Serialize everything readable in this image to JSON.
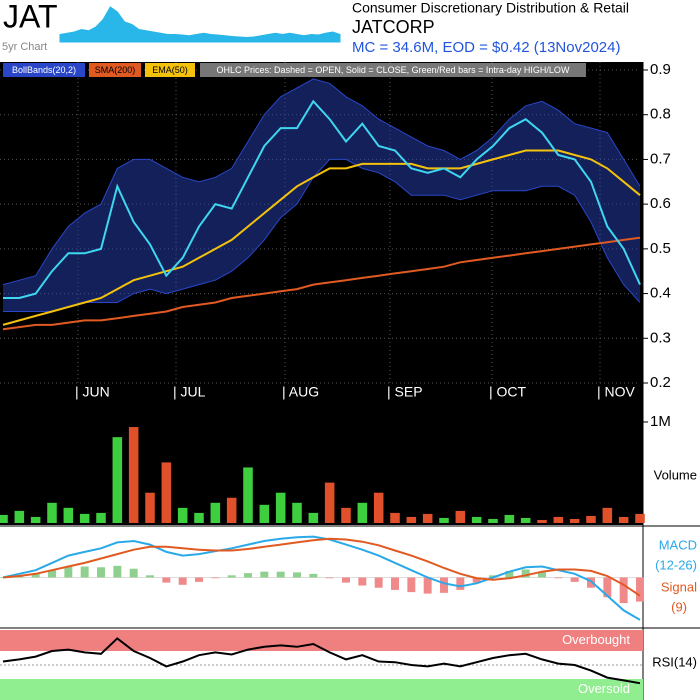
{
  "header": {
    "ticker": "JAT",
    "sector": "Consumer Discretionary Distribution & Retail",
    "company": "JATCORP",
    "summary": "MC = 34.6M, EOD = $0.42 (13Nov2024)"
  },
  "chart_data": [
    {
      "type": "area",
      "label": "5yr Chart",
      "color": "#29b6e8",
      "ylim": [
        0,
        1.6
      ],
      "values": [
        0.3,
        0.35,
        0.4,
        0.5,
        0.45,
        0.6,
        0.9,
        1.4,
        1.2,
        0.8,
        0.7,
        0.5,
        0.45,
        0.4,
        0.35,
        0.3,
        0.3,
        0.28,
        0.25,
        0.3,
        0.35,
        0.3,
        0.28,
        0.25,
        0.22,
        0.2,
        0.18,
        0.2,
        0.25,
        0.3,
        0.35,
        0.3,
        0.35,
        0.3,
        0.25,
        0.3,
        0.28,
        0.35,
        0.4,
        0.3
      ]
    },
    {
      "type": "line",
      "note": "OHLC Prices: Dashed = OPEN, Solid = CLOSE, Green/Red bars = Intra-day HIGH/LOW",
      "ylim": [
        0.2,
        0.9
      ],
      "yticks": [
        0.9,
        0.8,
        0.7,
        0.6,
        0.5,
        0.4,
        0.3,
        0.2
      ],
      "grid": true,
      "x_labels": [
        "| JUN",
        "| JUL",
        "| AUG",
        "| SEP",
        "| OCT",
        "| NOV"
      ],
      "series": [
        {
          "name": "BollBands(20,2)",
          "color": "#2a46c8",
          "upper": [
            0.42,
            0.43,
            0.44,
            0.5,
            0.55,
            0.58,
            0.6,
            0.68,
            0.7,
            0.7,
            0.68,
            0.66,
            0.65,
            0.66,
            0.68,
            0.74,
            0.8,
            0.84,
            0.86,
            0.88,
            0.87,
            0.84,
            0.82,
            0.79,
            0.77,
            0.75,
            0.73,
            0.72,
            0.7,
            0.72,
            0.75,
            0.79,
            0.82,
            0.83,
            0.81,
            0.78,
            0.77,
            0.76,
            0.7,
            0.64
          ],
          "lower": [
            0.36,
            0.36,
            0.36,
            0.36,
            0.37,
            0.38,
            0.38,
            0.38,
            0.4,
            0.41,
            0.4,
            0.41,
            0.42,
            0.43,
            0.45,
            0.48,
            0.52,
            0.57,
            0.6,
            0.66,
            0.7,
            0.7,
            0.68,
            0.67,
            0.65,
            0.62,
            0.62,
            0.62,
            0.61,
            0.62,
            0.63,
            0.63,
            0.63,
            0.64,
            0.64,
            0.62,
            0.56,
            0.48,
            0.42,
            0.38
          ]
        },
        {
          "name": "SMA(200)",
          "color": "#e05a22",
          "values": [
            0.32,
            0.325,
            0.33,
            0.33,
            0.335,
            0.34,
            0.34,
            0.345,
            0.35,
            0.355,
            0.36,
            0.37,
            0.375,
            0.38,
            0.39,
            0.395,
            0.4,
            0.405,
            0.41,
            0.42,
            0.425,
            0.43,
            0.435,
            0.44,
            0.445,
            0.45,
            0.455,
            0.46,
            0.47,
            0.475,
            0.48,
            0.485,
            0.49,
            0.495,
            0.5,
            0.505,
            0.51,
            0.515,
            0.52,
            0.525
          ]
        },
        {
          "name": "EMA(50)",
          "color": "#f4c20d",
          "values": [
            0.33,
            0.34,
            0.35,
            0.36,
            0.37,
            0.38,
            0.39,
            0.41,
            0.43,
            0.44,
            0.45,
            0.46,
            0.48,
            0.5,
            0.52,
            0.55,
            0.58,
            0.61,
            0.64,
            0.66,
            0.68,
            0.68,
            0.69,
            0.69,
            0.69,
            0.69,
            0.68,
            0.68,
            0.68,
            0.69,
            0.7,
            0.71,
            0.72,
            0.72,
            0.72,
            0.71,
            0.7,
            0.68,
            0.65,
            0.62
          ]
        },
        {
          "color": "#3fd6f0",
          "values": [
            0.39,
            0.39,
            0.4,
            0.45,
            0.49,
            0.49,
            0.5,
            0.64,
            0.56,
            0.51,
            0.44,
            0.48,
            0.55,
            0.6,
            0.59,
            0.66,
            0.73,
            0.77,
            0.77,
            0.83,
            0.79,
            0.74,
            0.78,
            0.73,
            0.72,
            0.68,
            0.67,
            0.68,
            0.66,
            0.7,
            0.73,
            0.77,
            0.79,
            0.76,
            0.71,
            0.7,
            0.65,
            0.55,
            0.5,
            0.42
          ]
        }
      ]
    },
    {
      "type": "bar",
      "label": "Volume",
      "ylim": [
        0,
        1000000
      ],
      "yticks": [
        {
          "value": 1000000,
          "label": "1M"
        }
      ],
      "up_color": "#3ecf3e",
      "down_color": "#e0502a",
      "values": [
        80000,
        120000,
        60000,
        200000,
        150000,
        90000,
        100000,
        850000,
        950000,
        300000,
        600000,
        150000,
        100000,
        200000,
        250000,
        550000,
        180000,
        300000,
        200000,
        100000,
        400000,
        150000,
        200000,
        300000,
        100000,
        60000,
        90000,
        50000,
        120000,
        60000,
        40000,
        80000,
        50000,
        30000,
        60000,
        40000,
        70000,
        150000,
        60000,
        90000
      ]
    },
    {
      "type": "line",
      "ylim": [
        -0.065,
        0.065
      ],
      "series": [
        {
          "name": "MACD",
          "label": "(12-26)",
          "color": "#2aa9e8",
          "values": [
            0.0,
            0.005,
            0.01,
            0.02,
            0.03,
            0.035,
            0.04,
            0.048,
            0.05,
            0.045,
            0.035,
            0.03,
            0.032,
            0.036,
            0.04,
            0.045,
            0.05,
            0.053,
            0.055,
            0.056,
            0.052,
            0.045,
            0.038,
            0.03,
            0.02,
            0.01,
            0.0,
            -0.008,
            -0.012,
            -0.008,
            0.0,
            0.008,
            0.014,
            0.015,
            0.01,
            0.005,
            -0.005,
            -0.025,
            -0.045,
            -0.058
          ]
        },
        {
          "name": "Signal",
          "label": "(9)",
          "color": "#e05a22",
          "values": [
            0.0,
            0.002,
            0.005,
            0.01,
            0.015,
            0.02,
            0.026,
            0.032,
            0.038,
            0.042,
            0.042,
            0.04,
            0.038,
            0.037,
            0.037,
            0.039,
            0.042,
            0.045,
            0.048,
            0.051,
            0.053,
            0.052,
            0.049,
            0.044,
            0.037,
            0.03,
            0.022,
            0.013,
            0.005,
            -0.001,
            -0.003,
            -0.001,
            0.003,
            0.008,
            0.011,
            0.011,
            0.009,
            0.002,
            -0.01,
            -0.025
          ]
        }
      ],
      "histogram": {
        "up_color": "#8fcf8f",
        "down_color": "#f08a8a",
        "values": [
          0,
          0.003,
          0.005,
          0.01,
          0.015,
          0.015,
          0.014,
          0.016,
          0.012,
          0.003,
          -0.007,
          -0.01,
          -0.006,
          -0.001,
          0.003,
          0.006,
          0.008,
          0.008,
          0.007,
          0.005,
          -0.001,
          -0.007,
          -0.011,
          -0.014,
          -0.017,
          -0.02,
          -0.022,
          -0.021,
          -0.017,
          -0.007,
          0.003,
          0.009,
          0.011,
          0.007,
          -0.001,
          -0.006,
          -0.014,
          -0.027,
          -0.035,
          -0.033
        ]
      }
    },
    {
      "type": "line",
      "label": "RSI(14)",
      "ylim": [
        0,
        100
      ],
      "midline": 50,
      "bands": [
        {
          "label": "Overbought",
          "from": 70,
          "to": 100,
          "color": "#f08080"
        },
        {
          "label": "Oversold",
          "from": 0,
          "to": 30,
          "color": "#90ee90"
        }
      ],
      "series": [
        {
          "color": "#000000",
          "values": [
            55,
            58,
            62,
            70,
            72,
            68,
            66,
            88,
            70,
            60,
            48,
            55,
            64,
            68,
            65,
            72,
            76,
            78,
            76,
            80,
            68,
            58,
            64,
            55,
            54,
            50,
            48,
            52,
            48,
            54,
            60,
            64,
            66,
            58,
            52,
            50,
            42,
            32,
            28,
            24
          ]
        }
      ]
    }
  ]
}
